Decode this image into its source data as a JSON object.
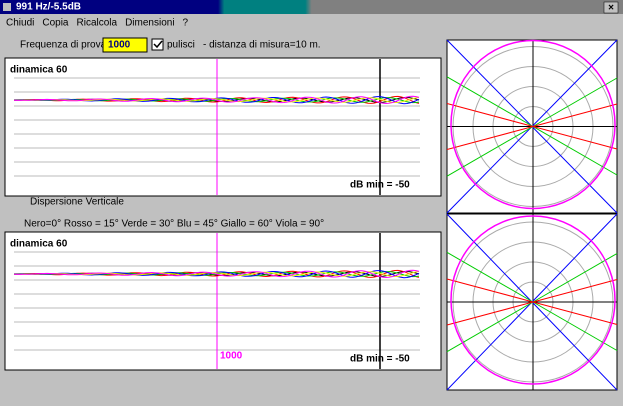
{
  "window": {
    "title": "991 Hz/-5.5dB",
    "close": "×"
  },
  "menu": [
    "Chiudi",
    "Copia",
    "Ricalcola",
    "Dimensioni",
    "?"
  ],
  "controls": {
    "frequency_label": "Frequenza di prova",
    "frequency_value": "1000",
    "checkbox_label": "pulisci",
    "distance": "-  distanza di misura=10 m."
  },
  "panels": [
    {
      "title": "dinamica 60",
      "db_min": "dB min = -50"
    },
    {
      "title": "dinamica 60",
      "db_min": "dB min = -50",
      "marker": "1000"
    }
  ],
  "section_label": "Dispersione Verticale",
  "legend": "Nero=0°  Rosso = 15°  Verde = 30°  Blu = 45°  Giallo = 60°  Viola = 90°"
}
